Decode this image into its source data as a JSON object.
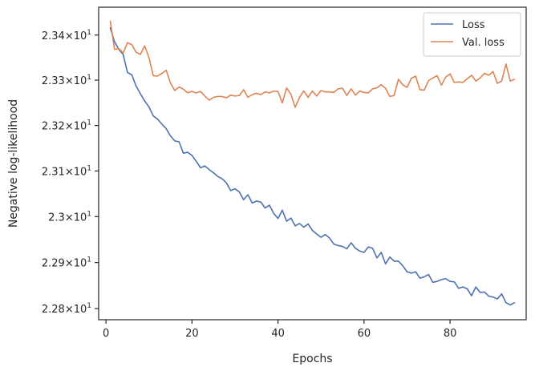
{
  "chart_data": {
    "type": "line",
    "xlabel": "Epochs",
    "ylabel": "Negative log-likelihood",
    "xlim": [
      -1.7,
      97.7
    ],
    "ylim": [
      22.776,
      23.462
    ],
    "xticks": [
      0,
      20,
      40,
      60,
      80
    ],
    "yticks": [
      {
        "value": 22.8,
        "mantissa": "2.28",
        "times": "×",
        "base": "10",
        "exp": "1"
      },
      {
        "value": 22.9,
        "mantissa": "2.29",
        "times": "×",
        "base": "10",
        "exp": "1"
      },
      {
        "value": 23.0,
        "mantissa": "2.3",
        "times": "×",
        "base": "10",
        "exp": "1"
      },
      {
        "value": 23.1,
        "mantissa": "2.31",
        "times": "×",
        "base": "10",
        "exp": "1"
      },
      {
        "value": 23.2,
        "mantissa": "2.32",
        "times": "×",
        "base": "10",
        "exp": "1"
      },
      {
        "value": 23.3,
        "mantissa": "2.33",
        "times": "×",
        "base": "10",
        "exp": "1"
      },
      {
        "value": 23.4,
        "mantissa": "2.34",
        "times": "×",
        "base": "10",
        "exp": "1"
      }
    ],
    "legend_position": "top-right",
    "grid": false,
    "x": [
      1,
      2,
      3,
      4,
      5,
      6,
      7,
      8,
      9,
      10,
      11,
      12,
      13,
      14,
      15,
      16,
      17,
      18,
      19,
      20,
      21,
      22,
      23,
      24,
      25,
      26,
      27,
      28,
      29,
      30,
      31,
      32,
      33,
      34,
      35,
      36,
      37,
      38,
      39,
      40,
      41,
      42,
      43,
      44,
      45,
      46,
      47,
      48,
      49,
      50,
      51,
      52,
      53,
      54,
      55,
      56,
      57,
      58,
      59,
      60,
      61,
      62,
      63,
      64,
      65,
      66,
      67,
      68,
      69,
      70,
      71,
      72,
      73,
      74,
      75,
      76,
      77,
      78,
      79,
      80,
      81,
      82,
      83,
      84,
      85,
      86,
      87,
      88,
      89,
      90,
      91,
      92,
      93,
      94,
      95
    ],
    "series": [
      {
        "name": "Loss",
        "color": "#4c72b0",
        "values": [
          23.416,
          23.385,
          23.368,
          23.357,
          23.317,
          23.312,
          23.287,
          23.27,
          23.254,
          23.241,
          23.221,
          23.214,
          23.203,
          23.193,
          23.177,
          23.166,
          23.164,
          23.139,
          23.141,
          23.134,
          23.121,
          23.107,
          23.111,
          23.103,
          23.096,
          23.088,
          23.083,
          23.074,
          23.057,
          23.061,
          23.054,
          23.037,
          23.048,
          23.03,
          23.034,
          23.032,
          23.019,
          23.025,
          23.007,
          22.996,
          23.014,
          22.99,
          22.997,
          22.98,
          22.985,
          22.977,
          22.984,
          22.97,
          22.962,
          22.955,
          22.961,
          22.953,
          22.94,
          22.937,
          22.935,
          22.93,
          22.943,
          22.931,
          22.925,
          22.922,
          22.934,
          22.931,
          22.91,
          22.922,
          22.897,
          22.912,
          22.903,
          22.903,
          22.893,
          22.88,
          22.877,
          22.88,
          22.866,
          22.869,
          22.874,
          22.857,
          22.859,
          22.863,
          22.865,
          22.859,
          22.858,
          22.844,
          22.847,
          22.843,
          22.828,
          22.847,
          22.835,
          22.836,
          22.827,
          22.825,
          22.821,
          22.832,
          22.813,
          22.808,
          22.813
        ]
      },
      {
        "name": "Val. loss",
        "color": "#dd8452",
        "values": [
          23.431,
          23.368,
          23.37,
          23.36,
          23.383,
          23.379,
          23.362,
          23.357,
          23.376,
          23.35,
          23.31,
          23.309,
          23.315,
          23.322,
          23.294,
          23.277,
          23.285,
          23.28,
          23.272,
          23.275,
          23.272,
          23.275,
          23.265,
          23.256,
          23.262,
          23.264,
          23.264,
          23.261,
          23.267,
          23.265,
          23.266,
          23.279,
          23.262,
          23.268,
          23.271,
          23.268,
          23.274,
          23.272,
          23.276,
          23.275,
          23.25,
          23.283,
          23.269,
          23.24,
          23.262,
          23.276,
          23.262,
          23.276,
          23.265,
          23.277,
          23.274,
          23.274,
          23.273,
          23.281,
          23.282,
          23.266,
          23.281,
          23.267,
          23.276,
          23.273,
          23.272,
          23.281,
          23.283,
          23.29,
          23.282,
          23.264,
          23.266,
          23.302,
          23.29,
          23.284,
          23.304,
          23.309,
          23.279,
          23.278,
          23.299,
          23.305,
          23.31,
          23.289,
          23.307,
          23.314,
          23.295,
          23.296,
          23.295,
          23.303,
          23.311,
          23.298,
          23.305,
          23.315,
          23.311,
          23.319,
          23.293,
          23.298,
          23.336,
          23.298,
          23.302
        ]
      }
    ]
  }
}
